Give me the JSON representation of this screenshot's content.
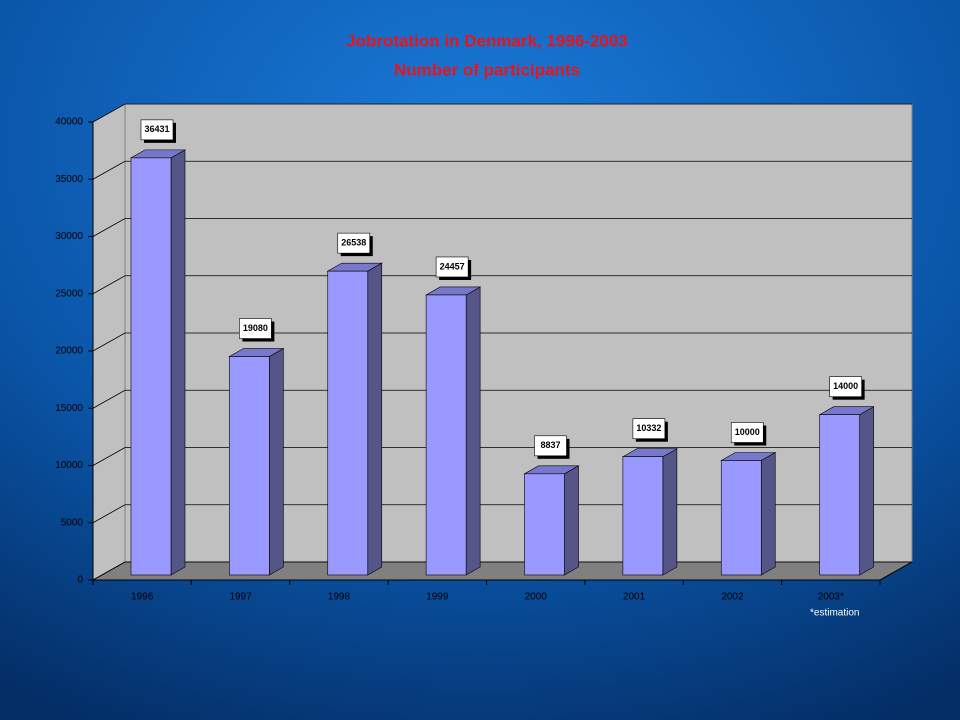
{
  "chart_data": {
    "type": "bar3d",
    "title": "Jobrotation in Denmark, 1996-2003",
    "subtitle": "Number of participants",
    "categories": [
      "1996",
      "1997",
      "1998",
      "1999",
      "2000",
      "2001",
      "2002",
      "2003*"
    ],
    "values": [
      36431,
      19080,
      26538,
      24457,
      8837,
      10332,
      10000,
      14000
    ],
    "color": "#9999ff",
    "ylim": [
      0,
      40000
    ],
    "yticks": [
      0,
      5000,
      10000,
      15000,
      20000,
      25000,
      30000,
      35000,
      40000
    ],
    "grid": true,
    "annotation": "*estimation"
  }
}
